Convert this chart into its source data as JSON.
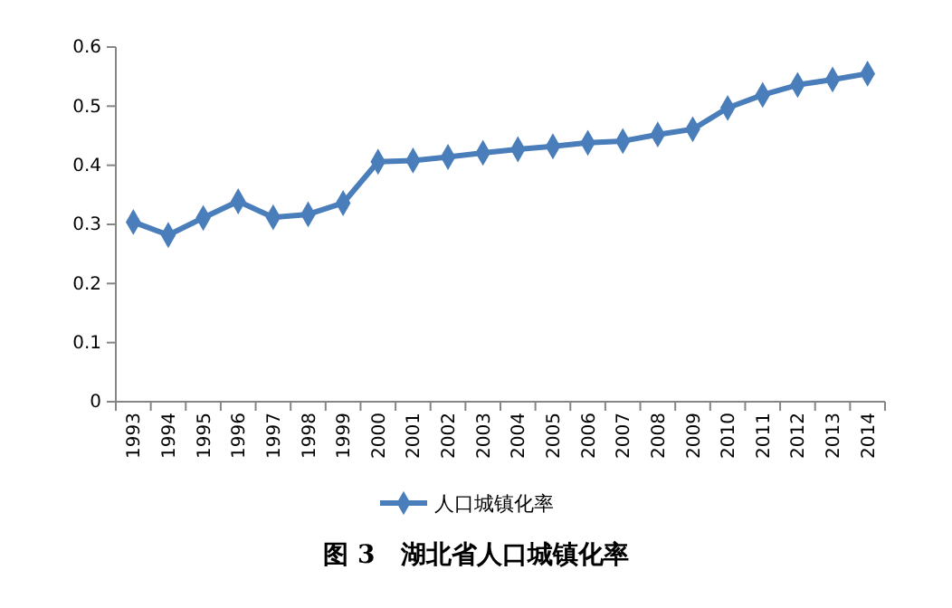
{
  "chart_data": {
    "type": "line",
    "title": "图 3　湖北省人口城镇化率",
    "categories": [
      "1993",
      "1994",
      "1995",
      "1996",
      "1997",
      "1998",
      "1999",
      "2000",
      "2001",
      "2002",
      "2003",
      "2004",
      "2005",
      "2006",
      "2007",
      "2008",
      "2009",
      "2010",
      "2011",
      "2012",
      "2013",
      "2014"
    ],
    "series": [
      {
        "name": "人口城镇化率",
        "color": "#4a7ebb",
        "values": [
          0.304,
          0.282,
          0.311,
          0.339,
          0.312,
          0.317,
          0.336,
          0.406,
          0.408,
          0.414,
          0.421,
          0.427,
          0.432,
          0.438,
          0.441,
          0.452,
          0.461,
          0.497,
          0.519,
          0.536,
          0.545,
          0.555
        ]
      }
    ],
    "ylim": [
      0,
      0.6
    ],
    "yticks": [
      0,
      0.1,
      0.2,
      0.3,
      0.4,
      0.5,
      0.6
    ],
    "grid": false,
    "legend": "bottom",
    "marker": "diamond",
    "line_style": "solid"
  }
}
